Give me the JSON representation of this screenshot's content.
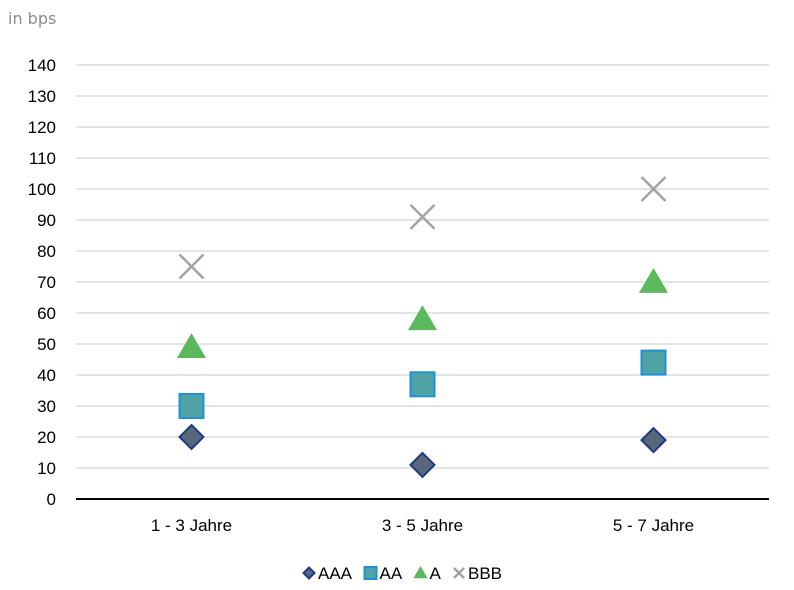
{
  "chart_data": {
    "type": "scatter",
    "unit_label": "in bps",
    "categories": [
      "1 - 3 Jahre",
      "3 - 5 Jahre",
      "5 - 7 Jahre"
    ],
    "ylim": [
      0,
      140
    ],
    "yticks": [
      0,
      10,
      20,
      30,
      40,
      50,
      60,
      70,
      80,
      90,
      100,
      110,
      120,
      130,
      140
    ],
    "grid": true,
    "legend_position": "bottom",
    "series": [
      {
        "name": "AAA",
        "marker": "diamond",
        "color": "#5a6679",
        "edge": "#1f3a8a",
        "values": [
          20,
          11,
          19
        ]
      },
      {
        "name": "AA",
        "marker": "square",
        "color": "#4fa3a5",
        "edge": "#1e90d6",
        "values": [
          30,
          37,
          44
        ]
      },
      {
        "name": "A",
        "marker": "triangle",
        "color": "#5cb85c",
        "edge": "#5cb85c",
        "values": [
          49,
          58,
          70
        ]
      },
      {
        "name": "BBB",
        "marker": "x",
        "color": "#a8a29c",
        "edge": "#a8a29c",
        "values": [
          75,
          91,
          100
        ]
      }
    ]
  }
}
